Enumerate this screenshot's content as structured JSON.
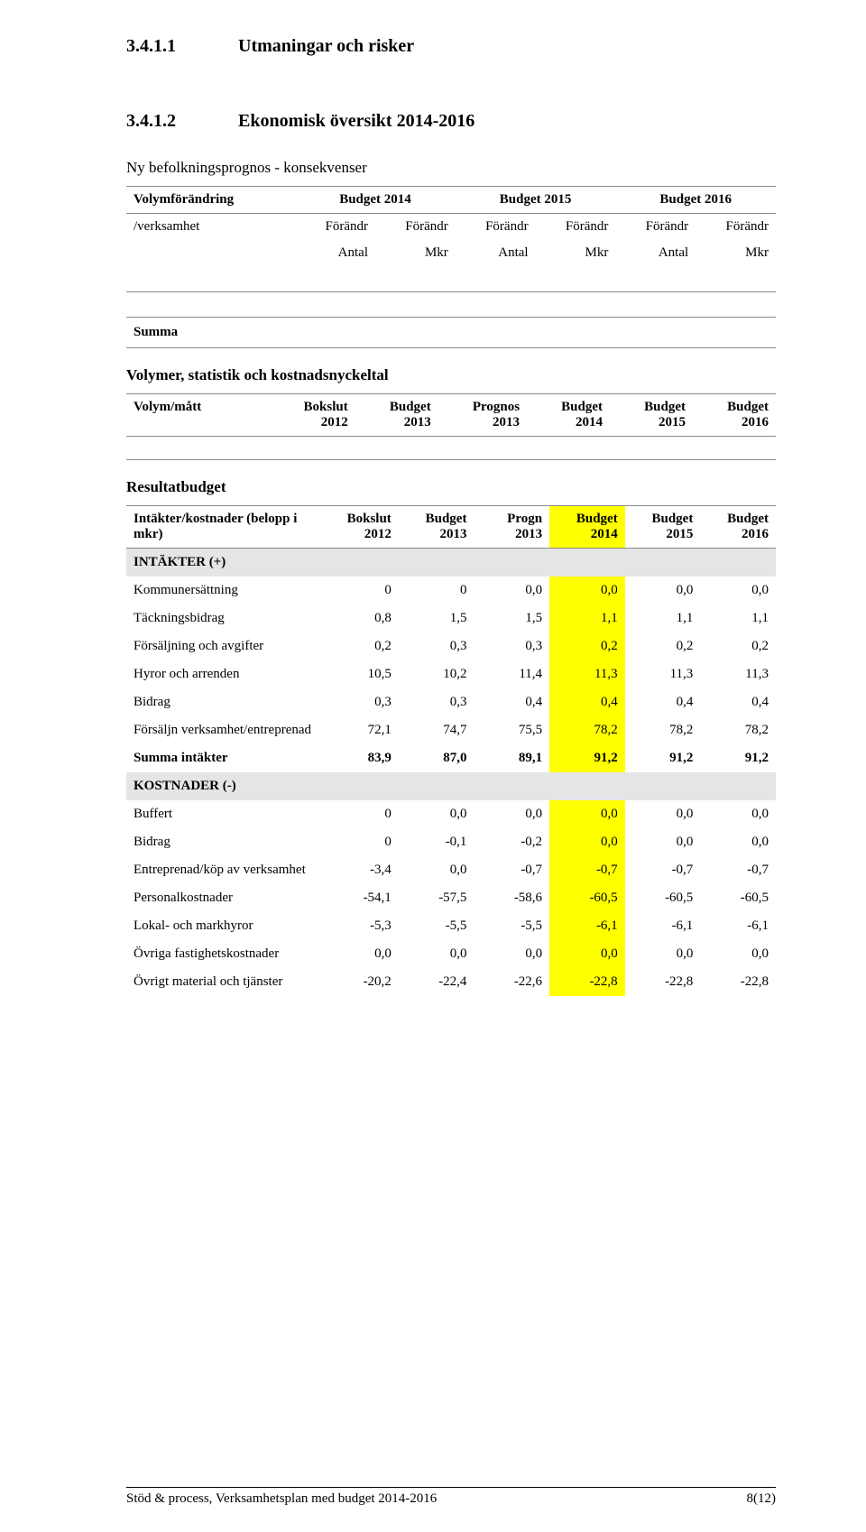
{
  "headings": {
    "h1_num": "3.4.1.1",
    "h1_title": "Utmaningar och risker",
    "h2_num": "3.4.1.2",
    "h2_title": "Ekonomisk översikt 2014-2016",
    "sub_prognos": "Ny befolkningsprognos - konsekvenser",
    "sub_volymer": "Volymer, statistik och kostnadsnyckeltal",
    "sub_result": "Resultatbudget"
  },
  "volymforandring": {
    "col0": "Volymförändring",
    "col_b14": "Budget 2014",
    "col_b15": "Budget 2015",
    "col_b16": "Budget 2016",
    "row_verk": "/verksamhet",
    "forandr": "Förändr",
    "antal": "Antal",
    "mkr": "Mkr",
    "summa": "Summa"
  },
  "volmatt": {
    "c0": "Volym/mått",
    "c1": "Bokslut 2012",
    "c2": "Budget 2013",
    "c3": "Prognos 2013",
    "c4": "Budget 2014",
    "c5": "Budget 2015",
    "c6": "Budget 2016"
  },
  "result": {
    "head": {
      "c0": "Intäkter/kostnader (belopp i mkr)",
      "c1": "Bokslut 2012",
      "c2": "Budget 2013",
      "c3": "Progn 2013",
      "c4": "Budget 2014",
      "c5": "Budget 2015",
      "c6": "Budget 2016"
    },
    "intakter_label": "INTÄKTER (+)",
    "kostnader_label": "KOSTNADER (-)",
    "rows": [
      {
        "label": "Kommunersättning",
        "v": [
          "0",
          "0",
          "0,0",
          "0,0",
          "0,0",
          "0,0"
        ]
      },
      {
        "label": "Täckningsbidrag",
        "v": [
          "0,8",
          "1,5",
          "1,5",
          "1,1",
          "1,1",
          "1,1"
        ]
      },
      {
        "label": "Försäljning och avgifter",
        "v": [
          "0,2",
          "0,3",
          "0,3",
          "0,2",
          "0,2",
          "0,2"
        ]
      },
      {
        "label": "Hyror och arrenden",
        "v": [
          "10,5",
          "10,2",
          "11,4",
          "11,3",
          "11,3",
          "11,3"
        ]
      },
      {
        "label": "Bidrag",
        "v": [
          "0,3",
          "0,3",
          "0,4",
          "0,4",
          "0,4",
          "0,4"
        ]
      },
      {
        "label": "Försäljn verksamhet/entreprenad",
        "v": [
          "72,1",
          "74,7",
          "75,5",
          "78,2",
          "78,2",
          "78,2"
        ]
      }
    ],
    "summa_intakter": {
      "label": "Summa intäkter",
      "v": [
        "83,9",
        "87,0",
        "89,1",
        "91,2",
        "91,2",
        "91,2"
      ]
    },
    "krows": [
      {
        "label": "Buffert",
        "v": [
          "0",
          "0,0",
          "0,0",
          "0,0",
          "0,0",
          "0,0"
        ]
      },
      {
        "label": "Bidrag",
        "v": [
          "0",
          "-0,1",
          "-0,2",
          "0,0",
          "0,0",
          "0,0"
        ]
      },
      {
        "label": "Entreprenad/köp av verksamhet",
        "v": [
          "-3,4",
          "0,0",
          "-0,7",
          "-0,7",
          "-0,7",
          "-0,7"
        ]
      },
      {
        "label": "Personalkostnader",
        "v": [
          "-54,1",
          "-57,5",
          "-58,6",
          "-60,5",
          "-60,5",
          "-60,5"
        ]
      },
      {
        "label": "Lokal- och markhyror",
        "v": [
          "-5,3",
          "-5,5",
          "-5,5",
          "-6,1",
          "-6,1",
          "-6,1"
        ]
      },
      {
        "label": "Övriga fastighetskostnader",
        "v": [
          "0,0",
          "0,0",
          "0,0",
          "0,0",
          "0,0",
          "0,0"
        ]
      },
      {
        "label": "Övrigt material och tjänster",
        "v": [
          "-20,2",
          "-22,4",
          "-22,6",
          "-22,8",
          "-22,8",
          "-22,8"
        ]
      }
    ]
  },
  "footer": {
    "left": "Stöd & process, Verksamhetsplan med budget 2014-2016",
    "right": "8(12)"
  },
  "colors": {
    "highlight": "#ffff00",
    "section_bg": "#e5e5e5"
  }
}
